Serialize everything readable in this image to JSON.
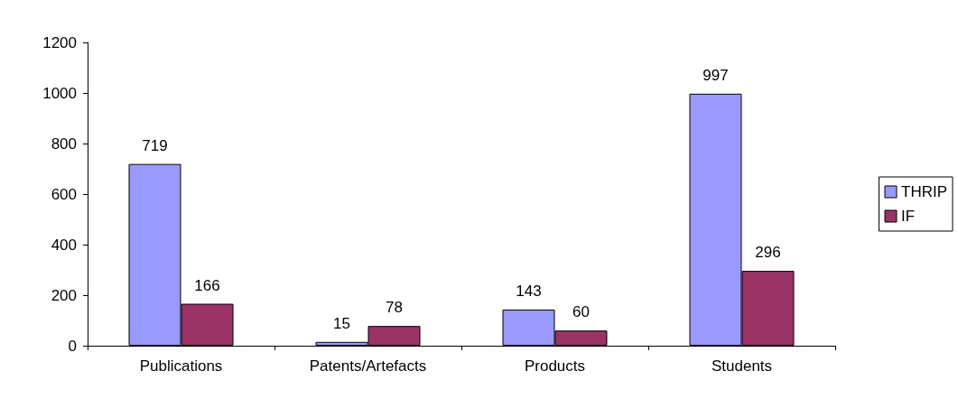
{
  "chart_data": {
    "type": "bar",
    "categories": [
      "Publications",
      "Patents/Artefacts",
      "Products",
      "Students"
    ],
    "series": [
      {
        "name": "THRIP",
        "color": "#9999ff",
        "values": [
          719,
          15,
          143,
          997
        ]
      },
      {
        "name": "IF",
        "color": "#993366",
        "values": [
          166,
          78,
          60,
          296
        ]
      }
    ],
    "ylim": [
      0,
      1200
    ],
    "yticks": [
      0,
      200,
      400,
      600,
      800,
      1000,
      1200
    ],
    "grid": false,
    "legend": "right",
    "data_labels": true
  }
}
